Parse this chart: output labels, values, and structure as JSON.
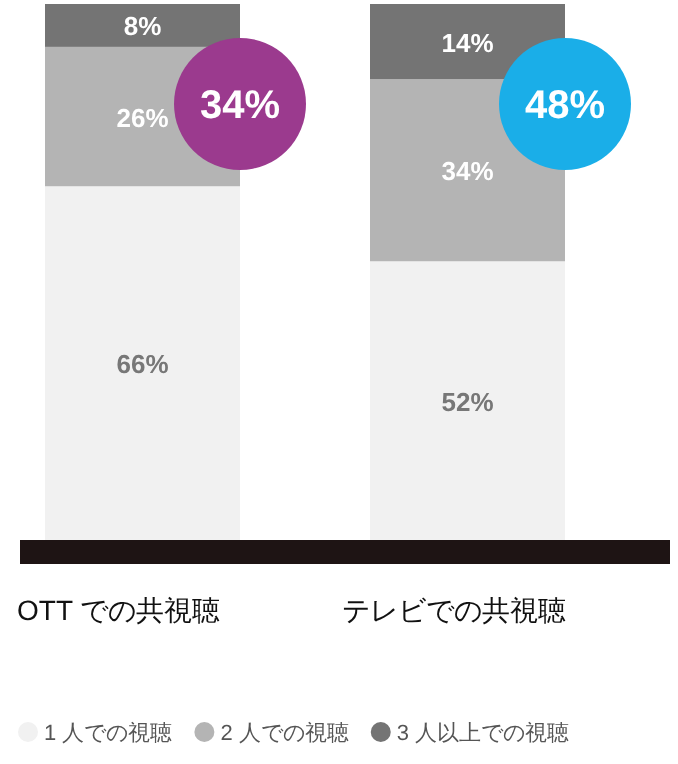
{
  "chart_data": {
    "type": "bar",
    "stacked": true,
    "categories": [
      "OTT での共視聴",
      "テレビでの共視聴"
    ],
    "ylim": [
      0,
      100
    ],
    "legend": "bottom",
    "series": [
      {
        "name": "1 人での視聴",
        "color": "#f1f1f1",
        "values": [
          66,
          52
        ],
        "value_labels": [
          "66%",
          "52%"
        ]
      },
      {
        "name": "2 人での視聴",
        "color": "#b4b4b4",
        "values": [
          26,
          34
        ],
        "value_labels": [
          "26%",
          "34%"
        ]
      },
      {
        "name": "3 人以上での視聴",
        "color": "#747474",
        "values": [
          8,
          14
        ],
        "value_labels": [
          "8%",
          "14%"
        ]
      }
    ],
    "annotations": [
      "34%",
      "48%"
    ]
  }
}
